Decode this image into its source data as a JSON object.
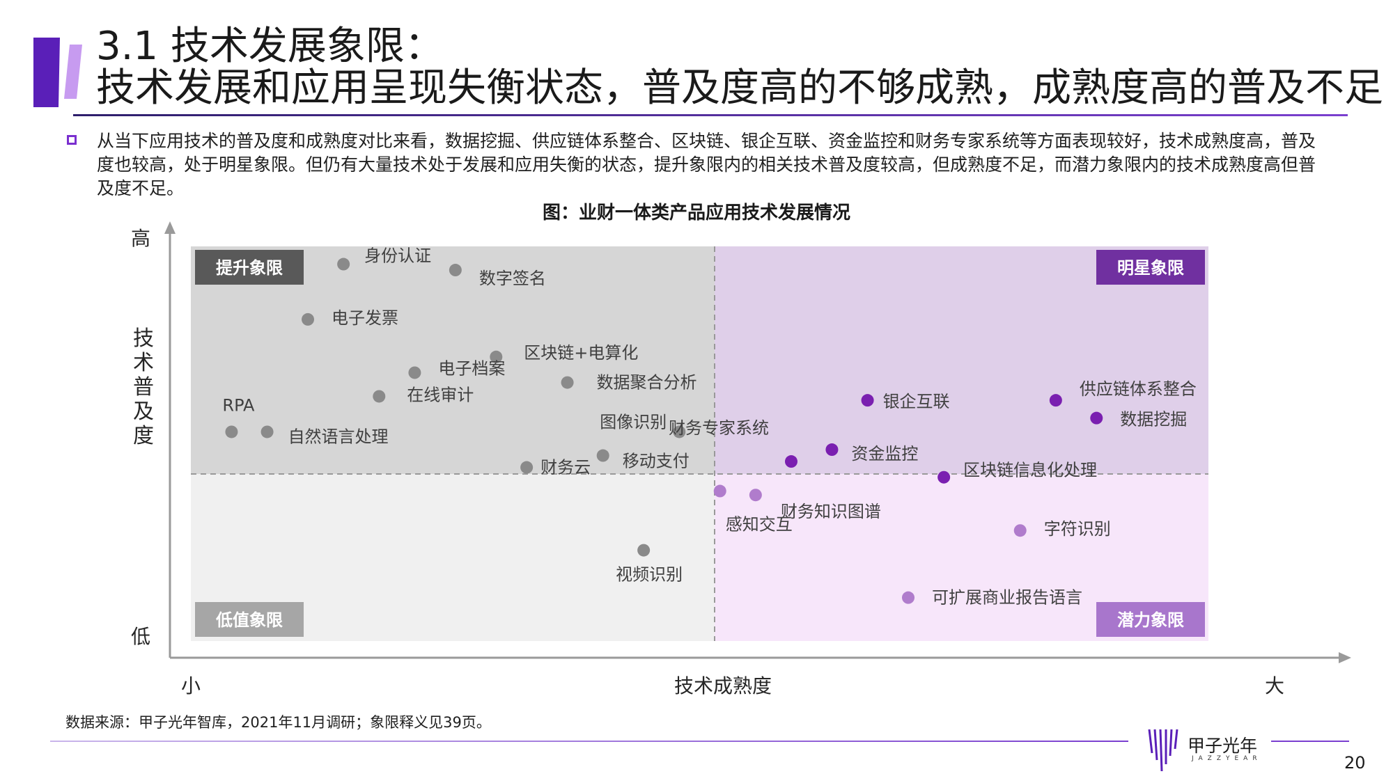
{
  "header": {
    "title_line1": "3.1 技术发展象限：",
    "title_line2": "技术发展和应用呈现失衡状态，普及度高的不够成熟，成熟度高的普及不足"
  },
  "body": {
    "text": "从当下应用技术的普及度和成熟度对比来看，数据挖掘、供应链体系整合、区块链、银企互联、资金监控和财务专家系统等方面表现较好，技术成熟度高，普及度也较高，处于明星象限。但仍有大量技术处于发展和应用失衡的状态，提升象限内的相关技术普及度较高，但成熟度不足，而潜力象限内的技术成熟度高但普及度不足。"
  },
  "chart_title": "图：业财一体类产品应用技术发展情况",
  "colors": {
    "accent": "#7a2fcf",
    "q_upgrade_bg": "#d6d6d6",
    "q_star_bg": "#dfcfe9",
    "q_low_bg": "#f0f0f0",
    "q_potential_bg": "#f7e6fa",
    "grey_point": "#8a8a8a",
    "star_point": "#7a1fb0",
    "potential_point": "#b07ccc"
  },
  "chart_data": {
    "type": "scatter",
    "xlabel": "技术成熟度",
    "ylabel": "技术普及度",
    "x_low_label": "小",
    "x_high_label": "大",
    "y_low_label": "低",
    "y_high_label": "高",
    "xlim": [
      0,
      100
    ],
    "ylim": [
      0,
      100
    ],
    "split": {
      "x": 51.5,
      "y": 41
    },
    "quadrants": [
      {
        "name": "提升象限",
        "position": "top-left"
      },
      {
        "name": "明星象限",
        "position": "top-right"
      },
      {
        "name": "低值象限",
        "position": "bottom-left"
      },
      {
        "name": "潜力象限",
        "position": "bottom-right"
      }
    ],
    "points": [
      {
        "label": "身份认证",
        "x": 15.0,
        "y": 95.5,
        "group": "upgrade"
      },
      {
        "label": "数字签名",
        "x": 26.0,
        "y": 94.0,
        "group": "upgrade"
      },
      {
        "label": "电子发票",
        "x": 11.5,
        "y": 81.5,
        "group": "upgrade"
      },
      {
        "label": "区块链+电算化",
        "x": 30.0,
        "y": 72.0,
        "group": "upgrade"
      },
      {
        "label": "电子档案",
        "x": 22.0,
        "y": 68.0,
        "group": "upgrade"
      },
      {
        "label": "数据聚合分析",
        "x": 37.0,
        "y": 65.5,
        "group": "upgrade"
      },
      {
        "label": "在线审计",
        "x": 18.5,
        "y": 62.0,
        "group": "upgrade"
      },
      {
        "label": "RPA",
        "x": 4.0,
        "y": 53.0,
        "group": "upgrade"
      },
      {
        "label": "自然语言处理",
        "x": 7.5,
        "y": 53.0,
        "group": "upgrade"
      },
      {
        "label": "图像识别",
        "x": 48.0,
        "y": 53.0,
        "group": "upgrade"
      },
      {
        "label": "移动支付",
        "x": 40.5,
        "y": 47.0,
        "group": "upgrade"
      },
      {
        "label": "财务云",
        "x": 33.0,
        "y": 44.0,
        "group": "upgrade"
      },
      {
        "label": "视频识别",
        "x": 44.5,
        "y": 23.0,
        "group": "low"
      },
      {
        "label": "银企互联",
        "x": 66.5,
        "y": 61.0,
        "group": "star"
      },
      {
        "label": "财务专家系统",
        "x": 59.0,
        "y": 45.5,
        "group": "star"
      },
      {
        "label": "资金监控",
        "x": 63.0,
        "y": 48.5,
        "group": "star"
      },
      {
        "label": "区块链信息化处理",
        "x": 74.0,
        "y": 41.5,
        "group": "star"
      },
      {
        "label": "供应链体系整合",
        "x": 85.0,
        "y": 61.0,
        "group": "star"
      },
      {
        "label": "数据挖掘",
        "x": 89.0,
        "y": 56.5,
        "group": "star"
      },
      {
        "label": "感知交互",
        "x": 52.0,
        "y": 38.0,
        "group": "potential"
      },
      {
        "label": "财务知识图谱",
        "x": 55.5,
        "y": 37.0,
        "group": "potential"
      },
      {
        "label": "字符识别",
        "x": 81.5,
        "y": 28.0,
        "group": "potential"
      },
      {
        "label": "可扩展商业报告语言",
        "x": 70.5,
        "y": 11.0,
        "group": "potential"
      }
    ]
  },
  "footer": {
    "source": "数据来源：甲子光年智库，2021年11月调研；象限释义见39页。",
    "logo_cn": "甲子光年",
    "logo_en": "JAZZYEAR",
    "page_number": "20"
  }
}
